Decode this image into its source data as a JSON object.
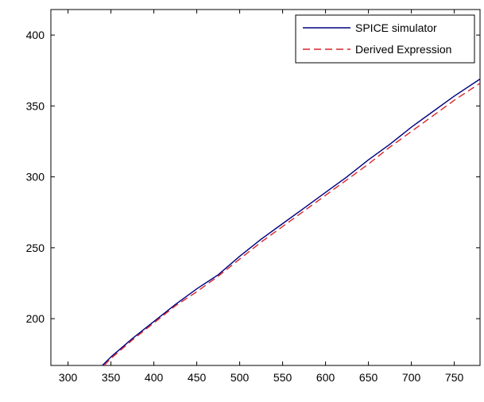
{
  "chart_data": {
    "type": "line",
    "title": "",
    "xlabel": "",
    "ylabel": "",
    "xlim": [
      280,
      780
    ],
    "ylim": [
      167,
      418
    ],
    "xticks": [
      300,
      350,
      400,
      450,
      500,
      550,
      600,
      650,
      700,
      750
    ],
    "yticks": [
      200,
      250,
      300,
      350,
      400
    ],
    "grid": false,
    "legend_position": "top-right",
    "series": [
      {
        "name": "SPICE simulator",
        "color": "#00007f",
        "style": "solid",
        "x": [
          340,
          350,
          375,
          400,
          425,
          450,
          475,
          500,
          525,
          550,
          575,
          600,
          625,
          650,
          675,
          700,
          725,
          750,
          780
        ],
        "y": [
          167,
          173,
          186,
          198,
          210,
          221,
          231,
          244,
          256,
          267,
          278,
          289,
          300,
          312,
          323,
          335,
          346,
          357,
          369
        ]
      },
      {
        "name": "Derived Expression",
        "color": "#d62728",
        "style": "dashed",
        "x": [
          342,
          350,
          375,
          400,
          425,
          450,
          475,
          500,
          525,
          550,
          575,
          600,
          625,
          650,
          675,
          700,
          725,
          750,
          780
        ],
        "y": [
          167,
          172,
          185,
          197,
          209,
          219,
          230,
          242,
          254,
          265,
          276,
          287,
          298,
          309,
          321,
          332,
          343,
          354,
          366
        ]
      }
    ]
  }
}
